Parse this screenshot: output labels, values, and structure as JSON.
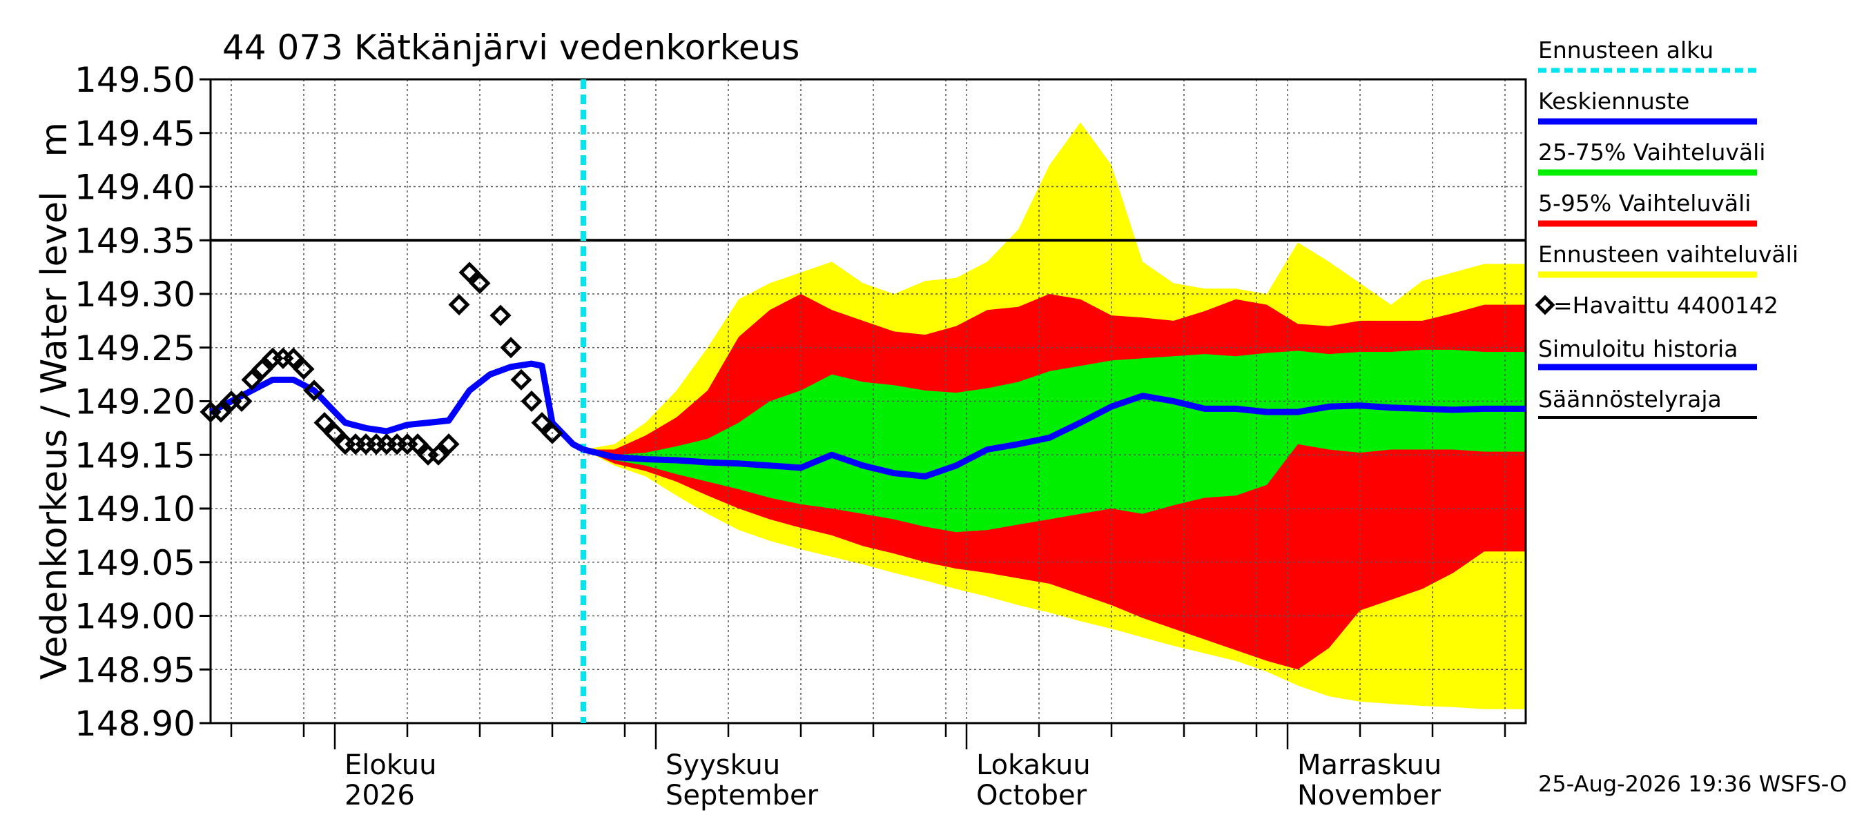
{
  "chart_data": {
    "type": "area",
    "title": "44 073 Kätkänjärvi vedenkorkeus",
    "ylabel": "Vedenkorkeus / Water level   m",
    "ylim": [
      148.9,
      149.5
    ],
    "yticks": [
      "149.50",
      "149.45",
      "149.40",
      "149.35",
      "149.30",
      "149.25",
      "149.20",
      "149.15",
      "149.10",
      "149.05",
      "149.00",
      "148.95",
      "148.90"
    ],
    "xlim": [
      "2026-07-20",
      "2026-11-24"
    ],
    "months": [
      {
        "label1": "Elokuu",
        "label2": "2026",
        "date": "2026-08-01"
      },
      {
        "label1": "Syyskuu",
        "label2": "September",
        "date": "2026-09-01"
      },
      {
        "label1": "Lokakuu",
        "label2": "October",
        "date": "2026-10-01"
      },
      {
        "label1": "Marraskuu",
        "label2": "November",
        "date": "2026-11-01"
      }
    ],
    "forecast_start": "2026-08-25",
    "regulation_limit": 149.35,
    "grid": true,
    "legend_position": "right",
    "legend": [
      {
        "label": "Ennusteen alku",
        "color": "#00e5ee",
        "style": "dashed"
      },
      {
        "label": "Keskiennuste",
        "color": "#0000ff",
        "style": "line"
      },
      {
        "label": "25-75% Vaihteluväli",
        "color": "#00ee00",
        "style": "line"
      },
      {
        "label": "5-95% Vaihteluväli",
        "color": "#ff0000",
        "style": "line"
      },
      {
        "label": "Ennusteen vaihteluväli",
        "color": "#ffff00",
        "style": "line"
      },
      {
        "label": "=Havaittu 4400142",
        "color": "#000000",
        "style": "marker"
      },
      {
        "label": "Simuloitu historia",
        "color": "#0000ff",
        "style": "line"
      },
      {
        "label": "Säännöstelyraja",
        "color": "#000000",
        "style": "line"
      }
    ],
    "colors": {
      "median": "#0000ff",
      "p25_75": "#00ee00",
      "p5_95": "#ff0000",
      "range": "#ffff00",
      "forecast_start": "#00e5ee",
      "observed": "#000000",
      "limit": "#000000"
    },
    "observed": [
      {
        "x": "2026-07-20",
        "y": 149.19
      },
      {
        "x": "2026-07-21",
        "y": 149.19
      },
      {
        "x": "2026-07-22",
        "y": 149.2
      },
      {
        "x": "2026-07-23",
        "y": 149.2
      },
      {
        "x": "2026-07-24",
        "y": 149.22
      },
      {
        "x": "2026-07-25",
        "y": 149.23
      },
      {
        "x": "2026-07-26",
        "y": 149.24
      },
      {
        "x": "2026-07-27",
        "y": 149.24
      },
      {
        "x": "2026-07-28",
        "y": 149.24
      },
      {
        "x": "2026-07-29",
        "y": 149.23
      },
      {
        "x": "2026-07-30",
        "y": 149.21
      },
      {
        "x": "2026-07-31",
        "y": 149.18
      },
      {
        "x": "2026-08-01",
        "y": 149.17
      },
      {
        "x": "2026-08-02",
        "y": 149.16
      },
      {
        "x": "2026-08-03",
        "y": 149.16
      },
      {
        "x": "2026-08-04",
        "y": 149.16
      },
      {
        "x": "2026-08-05",
        "y": 149.16
      },
      {
        "x": "2026-08-06",
        "y": 149.16
      },
      {
        "x": "2026-08-07",
        "y": 149.16
      },
      {
        "x": "2026-08-08",
        "y": 149.16
      },
      {
        "x": "2026-08-09",
        "y": 149.16
      },
      {
        "x": "2026-08-10",
        "y": 149.15
      },
      {
        "x": "2026-08-11",
        "y": 149.15
      },
      {
        "x": "2026-08-12",
        "y": 149.16
      },
      {
        "x": "2026-08-13",
        "y": 149.29
      },
      {
        "x": "2026-08-14",
        "y": 149.32
      },
      {
        "x": "2026-08-15",
        "y": 149.31
      },
      {
        "x": "2026-08-17",
        "y": 149.28
      },
      {
        "x": "2026-08-18",
        "y": 149.25
      },
      {
        "x": "2026-08-19",
        "y": 149.22
      },
      {
        "x": "2026-08-20",
        "y": 149.2
      },
      {
        "x": "2026-08-21",
        "y": 149.18
      },
      {
        "x": "2026-08-22",
        "y": 149.17
      }
    ],
    "simulated_history": [
      {
        "x": "2026-07-20",
        "y": 149.19
      },
      {
        "x": "2026-07-22",
        "y": 149.2
      },
      {
        "x": "2026-07-24",
        "y": 149.21
      },
      {
        "x": "2026-07-26",
        "y": 149.22
      },
      {
        "x": "2026-07-28",
        "y": 149.22
      },
      {
        "x": "2026-07-30",
        "y": 149.21
      },
      {
        "x": "2026-08-01",
        "y": 149.19
      },
      {
        "x": "2026-08-02",
        "y": 149.18
      },
      {
        "x": "2026-08-04",
        "y": 149.175
      },
      {
        "x": "2026-08-06",
        "y": 149.172
      },
      {
        "x": "2026-08-08",
        "y": 149.178
      },
      {
        "x": "2026-08-10",
        "y": 149.18
      },
      {
        "x": "2026-08-12",
        "y": 149.182
      },
      {
        "x": "2026-08-14",
        "y": 149.21
      },
      {
        "x": "2026-08-16",
        "y": 149.225
      },
      {
        "x": "2026-08-18",
        "y": 149.232
      },
      {
        "x": "2026-08-20",
        "y": 149.235
      },
      {
        "x": "2026-08-21",
        "y": 149.233
      },
      {
        "x": "2026-08-22",
        "y": 149.18
      },
      {
        "x": "2026-08-24",
        "y": 149.16
      },
      {
        "x": "2026-08-25",
        "y": 149.155
      }
    ],
    "forecast": [
      {
        "x": "2026-08-25",
        "min": 149.155,
        "p5": 149.155,
        "p25": 149.155,
        "median": 149.155,
        "p75": 149.155,
        "p95": 149.155,
        "max": 149.155
      },
      {
        "x": "2026-08-28",
        "min": 149.14,
        "p5": 149.142,
        "p25": 149.145,
        "median": 149.148,
        "p75": 149.15,
        "p95": 149.155,
        "max": 149.16
      },
      {
        "x": "2026-08-31",
        "min": 149.13,
        "p5": 149.135,
        "p25": 149.14,
        "median": 149.146,
        "p75": 149.152,
        "p95": 149.168,
        "max": 149.18
      },
      {
        "x": "2026-09-03",
        "min": 149.112,
        "p5": 149.125,
        "p25": 149.132,
        "median": 149.145,
        "p75": 149.158,
        "p95": 149.185,
        "max": 149.21
      },
      {
        "x": "2026-09-06",
        "min": 149.095,
        "p5": 149.112,
        "p25": 149.125,
        "median": 149.143,
        "p75": 149.165,
        "p95": 149.21,
        "max": 149.25
      },
      {
        "x": "2026-09-09",
        "min": 149.08,
        "p5": 149.1,
        "p25": 149.118,
        "median": 149.142,
        "p75": 149.18,
        "p95": 149.26,
        "max": 149.295
      },
      {
        "x": "2026-09-12",
        "min": 149.07,
        "p5": 149.09,
        "p25": 149.11,
        "median": 149.14,
        "p75": 149.2,
        "p95": 149.285,
        "max": 149.31
      },
      {
        "x": "2026-09-15",
        "min": 149.062,
        "p5": 149.082,
        "p25": 149.104,
        "median": 149.138,
        "p75": 149.21,
        "p95": 149.3,
        "max": 149.32
      },
      {
        "x": "2026-09-18",
        "min": 149.055,
        "p5": 149.075,
        "p25": 149.1,
        "median": 149.15,
        "p75": 149.225,
        "p95": 149.285,
        "max": 149.33
      },
      {
        "x": "2026-09-21",
        "min": 149.048,
        "p5": 149.065,
        "p25": 149.095,
        "median": 149.14,
        "p75": 149.218,
        "p95": 149.275,
        "max": 149.31
      },
      {
        "x": "2026-09-24",
        "min": 149.04,
        "p5": 149.058,
        "p25": 149.09,
        "median": 149.133,
        "p75": 149.215,
        "p95": 149.265,
        "max": 149.3
      },
      {
        "x": "2026-09-27",
        "min": 149.033,
        "p5": 149.05,
        "p25": 149.083,
        "median": 149.13,
        "p75": 149.21,
        "p95": 149.262,
        "max": 149.312
      },
      {
        "x": "2026-09-30",
        "min": 149.025,
        "p5": 149.044,
        "p25": 149.078,
        "median": 149.14,
        "p75": 149.208,
        "p95": 149.27,
        "max": 149.315
      },
      {
        "x": "2026-10-03",
        "min": 149.018,
        "p5": 149.04,
        "p25": 149.08,
        "median": 149.155,
        "p75": 149.212,
        "p95": 149.285,
        "max": 149.33
      },
      {
        "x": "2026-10-06",
        "min": 149.01,
        "p5": 149.035,
        "p25": 149.085,
        "median": 149.16,
        "p75": 149.218,
        "p95": 149.288,
        "max": 149.36
      },
      {
        "x": "2026-10-09",
        "min": 149.003,
        "p5": 149.03,
        "p25": 149.09,
        "median": 149.166,
        "p75": 149.228,
        "p95": 149.3,
        "max": 149.42
      },
      {
        "x": "2026-10-12",
        "min": 148.995,
        "p5": 149.02,
        "p25": 149.095,
        "median": 149.18,
        "p75": 149.233,
        "p95": 149.295,
        "max": 149.46
      },
      {
        "x": "2026-10-15",
        "min": 148.988,
        "p5": 149.01,
        "p25": 149.1,
        "median": 149.195,
        "p75": 149.238,
        "p95": 149.28,
        "max": 149.42
      },
      {
        "x": "2026-10-18",
        "min": 148.98,
        "p5": 148.998,
        "p25": 149.095,
        "median": 149.205,
        "p75": 149.24,
        "p95": 149.278,
        "max": 149.33
      },
      {
        "x": "2026-10-21",
        "min": 148.972,
        "p5": 148.988,
        "p25": 149.103,
        "median": 149.2,
        "p75": 149.242,
        "p95": 149.275,
        "max": 149.31
      },
      {
        "x": "2026-10-24",
        "min": 148.965,
        "p5": 148.978,
        "p25": 149.11,
        "median": 149.193,
        "p75": 149.244,
        "p95": 149.284,
        "max": 149.305
      },
      {
        "x": "2026-10-27",
        "min": 148.958,
        "p5": 148.968,
        "p25": 149.112,
        "median": 149.193,
        "p75": 149.242,
        "p95": 149.295,
        "max": 149.305
      },
      {
        "x": "2026-10-30",
        "min": 148.948,
        "p5": 148.958,
        "p25": 149.122,
        "median": 149.19,
        "p75": 149.245,
        "p95": 149.29,
        "max": 149.3
      },
      {
        "x": "2026-11-02",
        "min": 148.935,
        "p5": 148.95,
        "p25": 149.16,
        "median": 149.19,
        "p75": 149.247,
        "p95": 149.272,
        "max": 149.348
      },
      {
        "x": "2026-11-05",
        "min": 148.925,
        "p5": 148.97,
        "p25": 149.155,
        "median": 149.195,
        "p75": 149.244,
        "p95": 149.27,
        "max": 149.33
      },
      {
        "x": "2026-11-08",
        "min": 148.92,
        "p5": 149.005,
        "p25": 149.152,
        "median": 149.196,
        "p75": 149.246,
        "p95": 149.275,
        "max": 149.31
      },
      {
        "x": "2026-11-11",
        "min": 148.918,
        "p5": 149.015,
        "p25": 149.155,
        "median": 149.194,
        "p75": 149.246,
        "p95": 149.275,
        "max": 149.29
      },
      {
        "x": "2026-11-14",
        "min": 148.916,
        "p5": 149.025,
        "p25": 149.155,
        "median": 149.193,
        "p75": 149.248,
        "p95": 149.275,
        "max": 149.312
      },
      {
        "x": "2026-11-17",
        "min": 148.915,
        "p5": 149.04,
        "p25": 149.155,
        "median": 149.192,
        "p75": 149.248,
        "p95": 149.282,
        "max": 149.32
      },
      {
        "x": "2026-11-20",
        "min": 148.913,
        "p5": 149.06,
        "p25": 149.153,
        "median": 149.193,
        "p75": 149.246,
        "p95": 149.29,
        "max": 149.328
      }
    ]
  },
  "footer": {
    "timestamp": "25-Aug-2026 19:36 WSFS-O"
  }
}
